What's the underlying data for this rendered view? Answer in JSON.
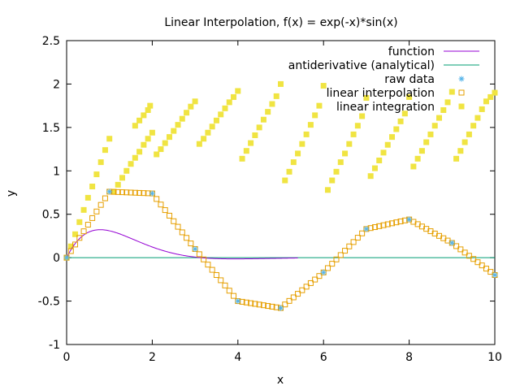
{
  "chart_data": {
    "type": "line",
    "title": "Linear Interpolation, f(x) = exp(-x)*sin(x)",
    "xlabel": "x",
    "ylabel": "y",
    "xlim": [
      0,
      10
    ],
    "ylim": [
      -1,
      2.5
    ],
    "xticks": [
      0,
      2,
      4,
      6,
      8,
      10
    ],
    "yticks": [
      -1,
      -0.5,
      0,
      0.5,
      1,
      1.5,
      2,
      2.5
    ],
    "ytick_labels": [
      "-1",
      "-0.5",
      "0",
      "0.5",
      "1",
      "1.5",
      "2",
      "2.5"
    ],
    "legend_position": "top-right",
    "series": [
      {
        "name": "function",
        "style": "line",
        "color": "#9400d3",
        "expression": "exp(-x)*sin(x)",
        "x_range": [
          0,
          5.4
        ]
      },
      {
        "name": "antiderivative (analytical)",
        "style": "line",
        "color": "#009e73",
        "x": [
          0,
          10
        ],
        "y": [
          0,
          0
        ]
      },
      {
        "name": "raw data",
        "style": "star",
        "color": "#56b4e9",
        "x": [
          0,
          1,
          2,
          3,
          4,
          5,
          6,
          7,
          8,
          9,
          10
        ],
        "y": [
          0,
          0.76,
          0.74,
          0.1,
          -0.5,
          -0.58,
          -0.17,
          0.33,
          0.44,
          0.17,
          -0.2
        ]
      },
      {
        "name": "linear interpolation",
        "style": "open-square",
        "color": "#e69f00",
        "x": [
          0,
          1,
          2,
          3,
          4,
          5,
          6,
          7,
          8,
          9,
          10
        ],
        "y": [
          0,
          0.76,
          0.74,
          0.1,
          -0.5,
          -0.58,
          -0.17,
          0.33,
          0.44,
          0.17,
          -0.2
        ],
        "step": 0.1
      },
      {
        "name": "linear integration",
        "style": "filled-square",
        "color": "#f0e442",
        "points": [
          [
            0,
            0
          ],
          [
            0.1,
            0.13
          ],
          [
            0.2,
            0.27
          ],
          [
            0.3,
            0.41
          ],
          [
            0.4,
            0.55
          ],
          [
            0.5,
            0.69
          ],
          [
            0.6,
            0.82
          ],
          [
            0.7,
            0.96
          ],
          [
            0.8,
            1.1
          ],
          [
            0.9,
            1.24
          ],
          [
            1.0,
            1.37
          ],
          [
            1.1,
            0.76
          ],
          [
            1.2,
            0.84
          ],
          [
            1.3,
            0.92
          ],
          [
            1.4,
            1.0
          ],
          [
            1.5,
            1.08
          ],
          [
            1.6,
            1.15
          ],
          [
            1.7,
            1.22
          ],
          [
            1.8,
            1.3
          ],
          [
            1.9,
            1.37
          ],
          [
            2.0,
            1.44
          ],
          [
            1.6,
            1.52
          ],
          [
            1.7,
            1.58
          ],
          [
            1.8,
            1.64
          ],
          [
            1.9,
            1.7
          ],
          [
            1.95,
            1.75
          ],
          [
            2.1,
            1.19
          ],
          [
            2.2,
            1.25
          ],
          [
            2.3,
            1.32
          ],
          [
            2.4,
            1.39
          ],
          [
            2.5,
            1.46
          ],
          [
            2.6,
            1.53
          ],
          [
            2.7,
            1.6
          ],
          [
            2.8,
            1.67
          ],
          [
            2.9,
            1.74
          ],
          [
            3.0,
            1.8
          ],
          [
            3.1,
            1.31
          ],
          [
            3.2,
            1.37
          ],
          [
            3.3,
            1.44
          ],
          [
            3.4,
            1.51
          ],
          [
            3.5,
            1.58
          ],
          [
            3.6,
            1.65
          ],
          [
            3.7,
            1.72
          ],
          [
            3.8,
            1.79
          ],
          [
            3.9,
            1.85
          ],
          [
            4.0,
            1.92
          ],
          [
            4.1,
            1.14
          ],
          [
            4.2,
            1.23
          ],
          [
            4.3,
            1.32
          ],
          [
            4.4,
            1.41
          ],
          [
            4.5,
            1.5
          ],
          [
            4.6,
            1.59
          ],
          [
            4.7,
            1.68
          ],
          [
            4.8,
            1.77
          ],
          [
            4.9,
            1.86
          ],
          [
            5.0,
            2.0
          ],
          [
            5.1,
            0.89
          ],
          [
            5.2,
            0.99
          ],
          [
            5.3,
            1.1
          ],
          [
            5.4,
            1.2
          ],
          [
            5.5,
            1.31
          ],
          [
            5.6,
            1.42
          ],
          [
            5.7,
            1.53
          ],
          [
            5.8,
            1.64
          ],
          [
            5.9,
            1.75
          ],
          [
            6.0,
            1.98
          ],
          [
            6.1,
            0.78
          ],
          [
            6.2,
            0.89
          ],
          [
            6.3,
            0.99
          ],
          [
            6.4,
            1.1
          ],
          [
            6.5,
            1.2
          ],
          [
            6.6,
            1.31
          ],
          [
            6.7,
            1.42
          ],
          [
            6.8,
            1.52
          ],
          [
            6.9,
            1.63
          ],
          [
            7.0,
            1.84
          ],
          [
            7.1,
            0.94
          ],
          [
            7.2,
            1.03
          ],
          [
            7.3,
            1.12
          ],
          [
            7.4,
            1.21
          ],
          [
            7.5,
            1.3
          ],
          [
            7.6,
            1.39
          ],
          [
            7.7,
            1.48
          ],
          [
            7.8,
            1.57
          ],
          [
            7.9,
            1.66
          ],
          [
            8.0,
            1.85
          ],
          [
            8.1,
            1.05
          ],
          [
            8.2,
            1.14
          ],
          [
            8.3,
            1.23
          ],
          [
            8.4,
            1.33
          ],
          [
            8.5,
            1.42
          ],
          [
            8.6,
            1.52
          ],
          [
            8.7,
            1.61
          ],
          [
            8.8,
            1.7
          ],
          [
            8.9,
            1.79
          ],
          [
            9.0,
            1.91
          ],
          [
            9.1,
            1.14
          ],
          [
            9.2,
            1.23
          ],
          [
            9.3,
            1.33
          ],
          [
            9.4,
            1.42
          ],
          [
            9.5,
            1.52
          ],
          [
            9.6,
            1.61
          ],
          [
            9.7,
            1.71
          ],
          [
            9.8,
            1.8
          ],
          [
            9.9,
            1.85
          ],
          [
            10.0,
            1.9
          ]
        ]
      }
    ]
  }
}
